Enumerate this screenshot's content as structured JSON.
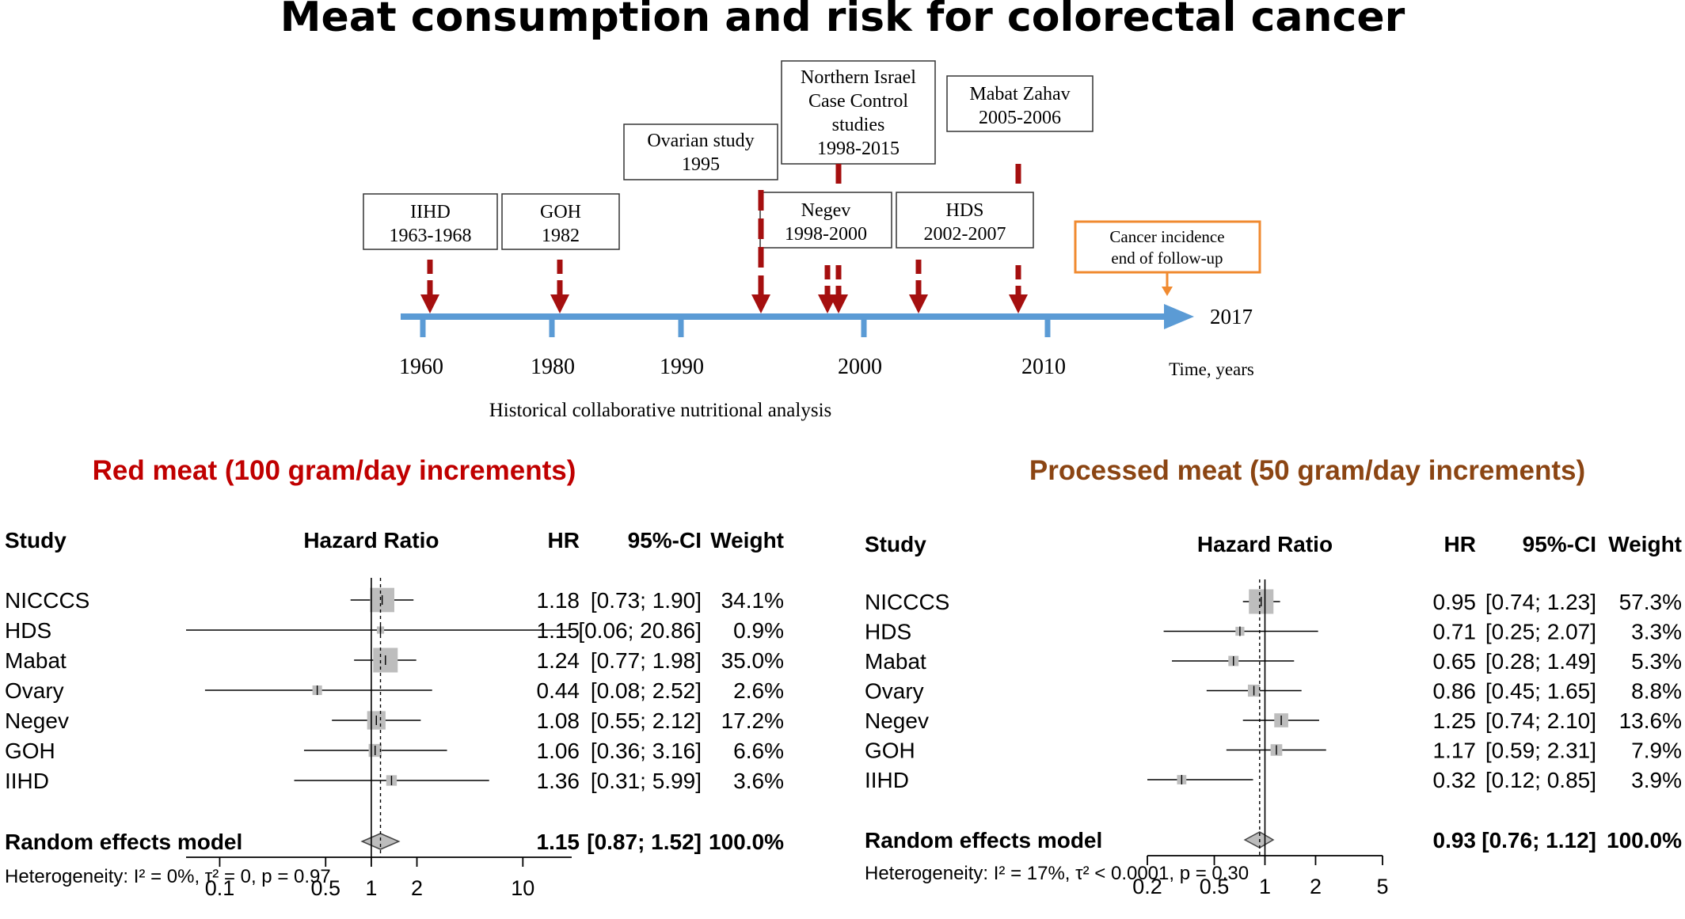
{
  "title": "Meat consumption and risk for colorectal cancer",
  "colors": {
    "timeline_axis": "#5b9bd5",
    "marker": "#a50f0f",
    "cancer_box": "#f08a30",
    "red_title": "#c00000",
    "processed_title": "#8b4513",
    "square": "#bdbdbd"
  },
  "timeline": {
    "year_ticks": [
      "1960",
      "1980",
      "1990",
      "2000",
      "2010"
    ],
    "end_label": "2017",
    "axis_label": "Time, years",
    "caption": "Historical collaborative nutritional analysis",
    "studies": [
      {
        "name": "IIHD",
        "years": "1963-1968"
      },
      {
        "name": "GOH",
        "years": "1982"
      },
      {
        "name": "Ovarian study",
        "years": "1995"
      },
      {
        "name": "Northern Israel Case Control studies",
        "years": "1998-2015"
      },
      {
        "name": "Negev",
        "years": "1998-2000"
      },
      {
        "name": "HDS",
        "years": "2002-2007"
      },
      {
        "name": "Mabat Zahav",
        "years": "2005-2006"
      }
    ],
    "cancer_box": [
      "Cancer incidence",
      "end of follow-up"
    ]
  },
  "chart_data": [
    {
      "type": "forest",
      "title": "Red meat (100 gram/day increments)",
      "columns": [
        "Study",
        "Hazard Ratio",
        "HR",
        "95%-CI",
        "Weight"
      ],
      "xscale": "log",
      "xlim": [
        0.06,
        21
      ],
      "xticks": [
        0.1,
        0.5,
        1,
        2,
        10
      ],
      "xtick_labels": [
        "0.1",
        "0.5",
        "1",
        "2",
        "10"
      ],
      "studies": [
        {
          "study": "NICCCS",
          "hr": 1.18,
          "lo": 0.73,
          "hi": 1.9,
          "hr_text": "1.18",
          "ci_text": "[0.73; 1.90]",
          "weight": 34.1,
          "weight_text": "34.1%"
        },
        {
          "study": "HDS",
          "hr": 1.15,
          "lo": 0.06,
          "hi": 20.86,
          "hr_text": "1.15",
          "ci_text": "[0.06; 20.86]",
          "weight": 0.9,
          "weight_text": "0.9%"
        },
        {
          "study": "Mabat",
          "hr": 1.24,
          "lo": 0.77,
          "hi": 1.98,
          "hr_text": "1.24",
          "ci_text": "[0.77; 1.98]",
          "weight": 35.0,
          "weight_text": "35.0%"
        },
        {
          "study": "Ovary",
          "hr": 0.44,
          "lo": 0.08,
          "hi": 2.52,
          "hr_text": "0.44",
          "ci_text": "[0.08; 2.52]",
          "weight": 2.6,
          "weight_text": "2.6%"
        },
        {
          "study": "Negev",
          "hr": 1.08,
          "lo": 0.55,
          "hi": 2.12,
          "hr_text": "1.08",
          "ci_text": "[0.55; 2.12]",
          "weight": 17.2,
          "weight_text": "17.2%"
        },
        {
          "study": "GOH",
          "hr": 1.06,
          "lo": 0.36,
          "hi": 3.16,
          "hr_text": "1.06",
          "ci_text": "[0.36; 3.16]",
          "weight": 6.6,
          "weight_text": "6.6%"
        },
        {
          "study": "IIHD",
          "hr": 1.36,
          "lo": 0.31,
          "hi": 5.99,
          "hr_text": "1.36",
          "ci_text": "[0.31; 5.99]",
          "weight": 3.6,
          "weight_text": "3.6%"
        }
      ],
      "pooled": {
        "label": "Random effects model",
        "hr": 1.15,
        "lo": 0.87,
        "hi": 1.52,
        "hr_text": "1.15",
        "ci_text": "[0.87; 1.52]",
        "weight_text": "100.0%"
      },
      "heterogeneity": "Heterogeneity: I² = 0%, τ² = 0, p = 0.97"
    },
    {
      "type": "forest",
      "title": "Processed meat (50 gram/day increments)",
      "columns": [
        "Study",
        "Hazard Ratio",
        "HR",
        "95%-CI",
        "Weight"
      ],
      "xscale": "log",
      "xlim": [
        0.2,
        5
      ],
      "xticks": [
        0.2,
        0.5,
        1,
        2,
        5
      ],
      "xtick_labels": [
        "0.2",
        "0.5",
        "1",
        "2",
        "5"
      ],
      "studies": [
        {
          "study": "NICCCS",
          "hr": 0.95,
          "lo": 0.74,
          "hi": 1.23,
          "hr_text": "0.95",
          "ci_text": "[0.74; 1.23]",
          "weight": 57.3,
          "weight_text": "57.3%"
        },
        {
          "study": "HDS",
          "hr": 0.71,
          "lo": 0.25,
          "hi": 2.07,
          "hr_text": "0.71",
          "ci_text": "[0.25; 2.07]",
          "weight": 3.3,
          "weight_text": "3.3%"
        },
        {
          "study": "Mabat",
          "hr": 0.65,
          "lo": 0.28,
          "hi": 1.49,
          "hr_text": "0.65",
          "ci_text": "[0.28; 1.49]",
          "weight": 5.3,
          "weight_text": "5.3%"
        },
        {
          "study": "Ovary",
          "hr": 0.86,
          "lo": 0.45,
          "hi": 1.65,
          "hr_text": "0.86",
          "ci_text": "[0.45; 1.65]",
          "weight": 8.8,
          "weight_text": "8.8%"
        },
        {
          "study": "Negev",
          "hr": 1.25,
          "lo": 0.74,
          "hi": 2.1,
          "hr_text": "1.25",
          "ci_text": "[0.74; 2.10]",
          "weight": 13.6,
          "weight_text": "13.6%"
        },
        {
          "study": "GOH",
          "hr": 1.17,
          "lo": 0.59,
          "hi": 2.31,
          "hr_text": "1.17",
          "ci_text": "[0.59; 2.31]",
          "weight": 7.9,
          "weight_text": "7.9%"
        },
        {
          "study": "IIHD",
          "hr": 0.32,
          "lo": 0.12,
          "hi": 0.85,
          "hr_text": "0.32",
          "ci_text": "[0.12; 0.85]",
          "weight": 3.9,
          "weight_text": "3.9%"
        }
      ],
      "pooled": {
        "label": "Random effects model",
        "hr": 0.93,
        "lo": 0.76,
        "hi": 1.12,
        "hr_text": "0.93",
        "ci_text": "[0.76; 1.12]",
        "weight_text": "100.0%"
      },
      "heterogeneity": "Heterogeneity: I² = 17%, τ² < 0.0001, p = 0.30"
    }
  ]
}
